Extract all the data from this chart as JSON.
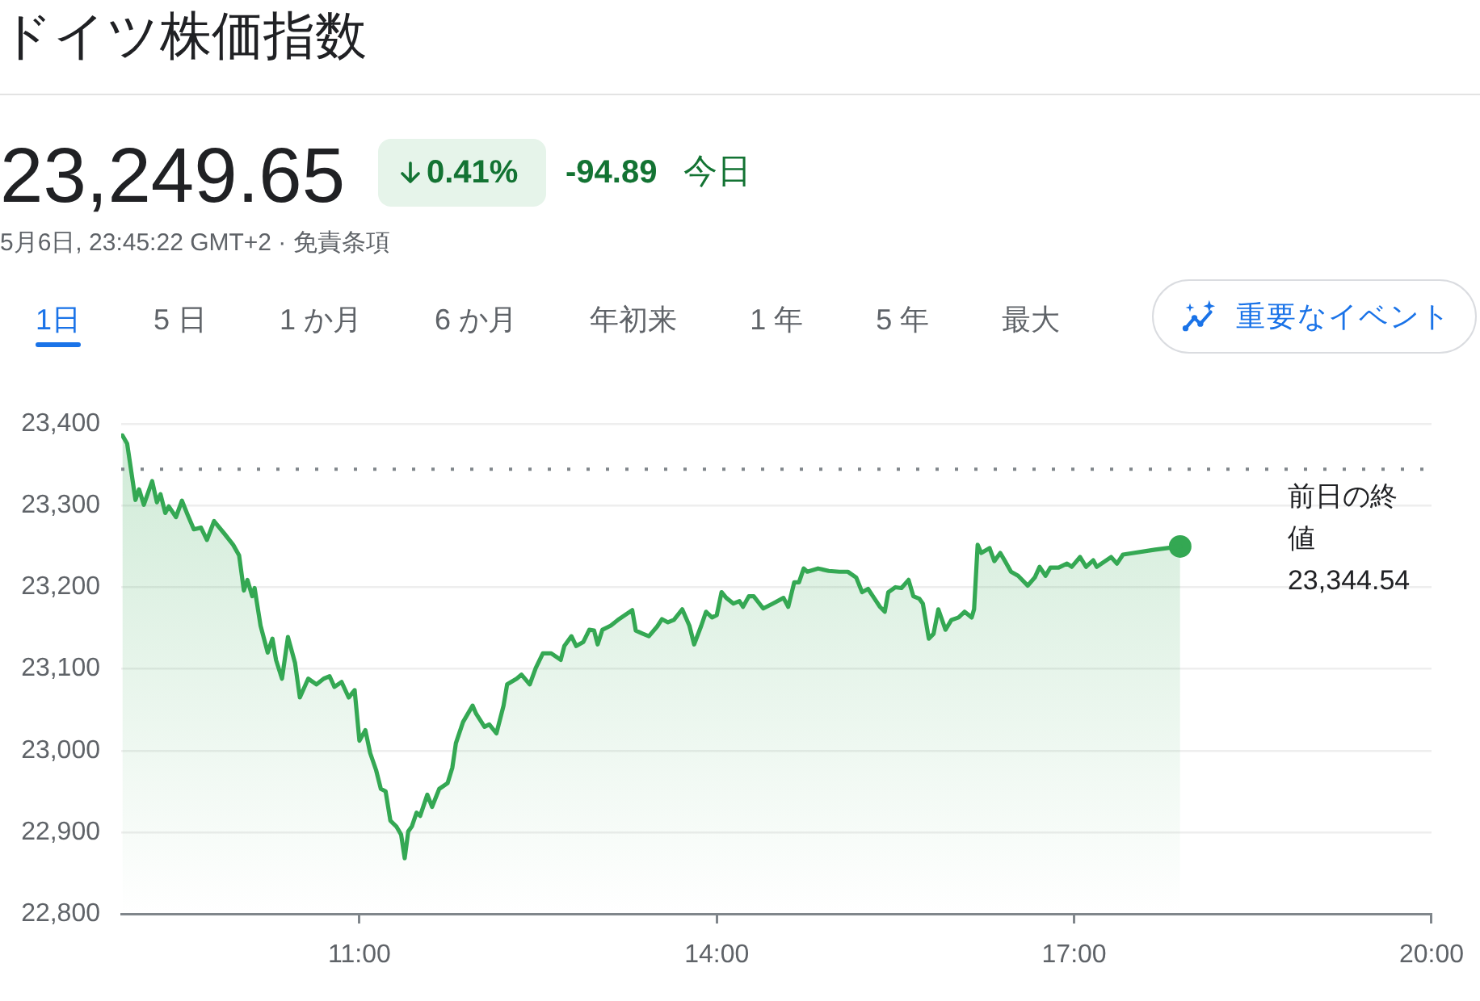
{
  "chart_data": {
    "type": "area",
    "title": "ドイツ株価指数",
    "annotations": [
      "23,249.65",
      "0.41%",
      "-94.89",
      "今日",
      "5月6日, 23:45:22 GMT+2 · 免責条項",
      "1日",
      "5 日",
      "1 か月",
      "6 か月",
      "年初来",
      "1 年",
      "5 年",
      "最大",
      "重要なイベント"
    ],
    "xlim": [
      9,
      20
    ],
    "xticks": [
      {
        "value": 11,
        "label": "11:00"
      },
      {
        "value": 14,
        "label": "14:00"
      },
      {
        "value": 17,
        "label": "17:00"
      },
      {
        "value": 20,
        "label": "20:00"
      }
    ],
    "ylim": [
      22800,
      23400
    ],
    "yticks": [
      {
        "value": 22800,
        "label": "22,800"
      },
      {
        "value": 22900,
        "label": "22,900"
      },
      {
        "value": 23000,
        "label": "23,000"
      },
      {
        "value": 23100,
        "label": "23,100"
      },
      {
        "value": 23200,
        "label": "23,200"
      },
      {
        "value": 23300,
        "label": "23,300"
      },
      {
        "value": 23400,
        "label": "23,400"
      }
    ],
    "grid": "y",
    "ref_lines": [
      {
        "axis": "y",
        "value": 23344.54,
        "label": "前日の終値 23,344.54",
        "color": "#80868b",
        "line_style": "dotted"
      }
    ],
    "series": [
      {
        "color": "#34a853",
        "x": [
          9.01,
          9.05,
          9.12,
          9.15,
          9.19,
          9.26,
          9.3,
          9.33,
          9.37,
          9.4,
          9.46,
          9.51,
          9.56,
          9.61,
          9.67,
          9.72,
          9.78,
          9.87,
          9.94,
          9.99,
          10.03,
          10.06,
          10.1,
          10.12,
          10.17,
          10.23,
          10.27,
          10.3,
          10.35,
          10.4,
          10.46,
          10.5,
          10.57,
          10.64,
          10.7,
          10.75,
          10.79,
          10.85,
          10.91,
          10.96,
          11.0,
          11.05,
          11.09,
          11.14,
          11.18,
          11.22,
          11.26,
          11.31,
          11.35,
          11.38,
          11.41,
          11.44,
          11.48,
          11.51,
          11.57,
          11.61,
          11.67,
          11.74,
          11.78,
          11.81,
          11.87,
          11.95,
          11.98,
          12.05,
          12.09,
          12.15,
          12.21,
          12.24,
          12.32,
          12.36,
          12.43,
          12.48,
          12.54,
          12.61,
          12.69,
          12.72,
          12.78,
          12.82,
          12.88,
          12.93,
          12.97,
          13.0,
          13.04,
          13.11,
          13.17,
          13.23,
          13.29,
          13.32,
          13.38,
          13.43,
          13.5,
          13.54,
          13.59,
          13.64,
          13.71,
          13.77,
          13.81,
          13.87,
          13.91,
          13.96,
          14.0,
          14.04,
          14.08,
          14.14,
          14.19,
          14.22,
          14.27,
          14.31,
          14.39,
          14.47,
          14.56,
          14.6,
          14.65,
          14.69,
          14.73,
          14.76,
          14.85,
          14.94,
          15.03,
          15.1,
          15.17,
          15.22,
          15.27,
          15.32,
          15.37,
          15.41,
          15.44,
          15.5,
          15.55,
          15.61,
          15.65,
          15.7,
          15.73,
          15.78,
          15.82,
          15.86,
          15.92,
          15.97,
          16.03,
          16.08,
          16.14,
          16.16,
          16.19,
          16.22,
          16.29,
          16.33,
          16.38,
          16.42,
          16.47,
          16.53,
          16.61,
          16.67,
          16.71,
          16.76,
          16.8,
          16.87,
          16.94,
          16.98,
          17.05,
          17.1,
          17.16,
          17.19,
          17.25,
          17.31,
          17.36,
          17.41,
          17.68,
          17.89
        ],
        "values": [
          23386,
          23376,
          23307,
          23320,
          23301,
          23330,
          23304,
          23314,
          23291,
          23299,
          23286,
          23306,
          23288,
          23271,
          23273,
          23258,
          23281,
          23265,
          23252,
          23239,
          23196,
          23209,
          23189,
          23199,
          23153,
          23120,
          23137,
          23111,
          23088,
          23139,
          23107,
          23065,
          23088,
          23081,
          23088,
          23091,
          23078,
          23084,
          23065,
          23074,
          23012,
          23025,
          22997,
          22976,
          22953,
          22950,
          22914,
          22907,
          22897,
          22868,
          22901,
          22907,
          22924,
          22920,
          22946,
          22931,
          22953,
          22960,
          22979,
          23009,
          23035,
          23055,
          23045,
          23029,
          23032,
          23021,
          23055,
          23081,
          23088,
          23093,
          23081,
          23101,
          23119,
          23119,
          23111,
          23128,
          23140,
          23128,
          23133,
          23148,
          23147,
          23130,
          23148,
          23153,
          23160,
          23166,
          23172,
          23147,
          23143,
          23140,
          23152,
          23161,
          23157,
          23160,
          23173,
          23153,
          23130,
          23153,
          23170,
          23163,
          23166,
          23194,
          23187,
          23180,
          23183,
          23176,
          23189,
          23189,
          23174,
          23180,
          23187,
          23176,
          23206,
          23206,
          23223,
          23219,
          23223,
          23220,
          23219,
          23219,
          23212,
          23194,
          23198,
          23187,
          23176,
          23170,
          23194,
          23200,
          23199,
          23209,
          23189,
          23186,
          23180,
          23137,
          23143,
          23173,
          23148,
          23160,
          23163,
          23170,
          23163,
          23173,
          23252,
          23242,
          23248,
          23232,
          23242,
          23232,
          23219,
          23214,
          23202,
          23212,
          23225,
          23214,
          23224,
          23224,
          23229,
          23225,
          23237,
          23225,
          23233,
          23225,
          23231,
          23237,
          23229,
          23240,
          23246,
          23250
        ]
      },
      {
        "type": "scatter",
        "color": "#34a853",
        "marker": "circle",
        "x": [
          17.89
        ],
        "values": [
          23250
        ]
      }
    ]
  }
}
